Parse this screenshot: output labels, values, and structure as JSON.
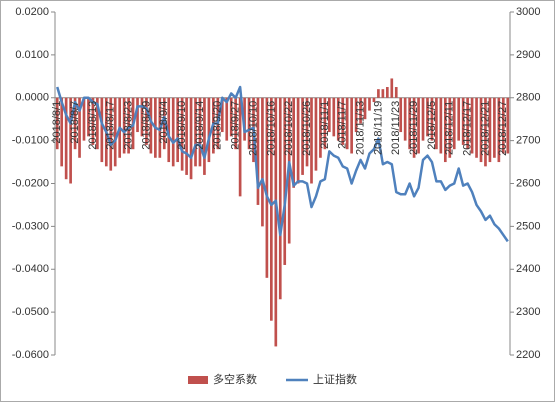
{
  "chart_data": {
    "type": "bar-line",
    "categories": [
      "2018/8/1",
      null,
      null,
      null,
      "2018/8/7",
      null,
      null,
      null,
      "2018/8/13",
      null,
      null,
      null,
      "2018/8/17",
      null,
      null,
      null,
      "2018/8/23",
      null,
      null,
      null,
      "2018/8/29",
      null,
      null,
      null,
      "2018/9/4",
      null,
      null,
      null,
      "2018/9/10",
      null,
      null,
      null,
      "2018/9/14",
      null,
      null,
      null,
      "2018/9/20",
      null,
      null,
      null,
      "2018/9/27",
      null,
      null,
      null,
      "2018/10/10",
      null,
      null,
      null,
      "2018/10/16",
      null,
      null,
      null,
      "2018/10/22",
      null,
      null,
      null,
      "2018/10/26",
      null,
      null,
      null,
      "2018/11/1",
      null,
      null,
      null,
      "2018/11/7",
      null,
      null,
      null,
      "2018/11/13",
      null,
      null,
      null,
      "2018/11/19",
      null,
      null,
      null,
      "2018/11/23",
      null,
      null,
      null,
      "2018/11/29",
      null,
      null,
      null,
      "2018/12/5",
      null,
      null,
      null,
      "2018/12/11",
      null,
      null,
      null,
      "2018/12/17",
      null,
      null,
      null,
      "2018/12/21",
      null,
      null,
      null,
      "2018/12/27",
      null
    ],
    "series": [
      {
        "name": "多空系数",
        "color": "#c0504d",
        "axis": "y",
        "values": [
          -0.012,
          -0.016,
          -0.019,
          -0.02,
          -0.012,
          -0.014,
          -0.01,
          -0.009,
          -0.011,
          -0.012,
          -0.015,
          -0.016,
          -0.017,
          -0.016,
          -0.014,
          -0.013,
          -0.013,
          -0.012,
          -0.008,
          -0.009,
          -0.011,
          -0.013,
          -0.014,
          -0.014,
          -0.012,
          -0.015,
          -0.016,
          -0.015,
          -0.017,
          -0.018,
          -0.019,
          -0.016,
          -0.016,
          -0.018,
          -0.015,
          -0.013,
          -0.012,
          -0.008,
          -0.01,
          -0.009,
          -0.012,
          -0.023,
          -0.01,
          -0.012,
          -0.015,
          -0.025,
          -0.03,
          -0.042,
          -0.052,
          -0.058,
          -0.047,
          -0.039,
          -0.034,
          -0.021,
          -0.02,
          -0.018,
          -0.016,
          -0.02,
          -0.017,
          -0.014,
          -0.012,
          -0.008,
          -0.009,
          -0.01,
          -0.011,
          -0.012,
          -0.013,
          -0.008,
          -0.006,
          -0.005,
          -0.003,
          -0.001,
          0.002,
          0.002,
          0.0025,
          0.0045,
          0.0025,
          -0.008,
          -0.01,
          -0.012,
          -0.014,
          -0.013,
          -0.01,
          -0.009,
          -0.01,
          -0.012,
          -0.013,
          -0.015,
          -0.014,
          -0.012,
          -0.01,
          -0.011,
          -0.012,
          -0.013,
          -0.014,
          -0.015,
          -0.016,
          -0.015,
          -0.014,
          -0.015,
          -0.013,
          -0.013
        ]
      },
      {
        "name": "上证指数",
        "color": "#4f81bd",
        "axis": "y2",
        "values": [
          2825,
          2790,
          2760,
          2740,
          2790,
          2770,
          2800,
          2800,
          2790,
          2785,
          2740,
          2720,
          2690,
          2700,
          2730,
          2720,
          2730,
          2735,
          2780,
          2780,
          2775,
          2745,
          2730,
          2725,
          2755,
          2710,
          2695,
          2705,
          2675,
          2670,
          2660,
          2690,
          2690,
          2660,
          2705,
          2740,
          2740,
          2800,
          2790,
          2810,
          2800,
          2825,
          2720,
          2725,
          2730,
          2590,
          2610,
          2570,
          2550,
          2560,
          2480,
          2550,
          2650,
          2595,
          2605,
          2605,
          2600,
          2545,
          2570,
          2605,
          2610,
          2675,
          2665,
          2660,
          2640,
          2635,
          2600,
          2630,
          2655,
          2635,
          2670,
          2680,
          2705,
          2645,
          2650,
          2645,
          2580,
          2575,
          2575,
          2600,
          2570,
          2590,
          2655,
          2665,
          2650,
          2605,
          2605,
          2585,
          2595,
          2600,
          2635,
          2595,
          2600,
          2580,
          2550,
          2535,
          2515,
          2525,
          2505,
          2495,
          2480,
          2465
        ]
      }
    ],
    "ylim": [
      -0.06,
      0.02
    ],
    "yticks": [
      {
        "value": -0.06,
        "label": "-0.0600"
      },
      {
        "value": -0.05,
        "label": "-0.0500"
      },
      {
        "value": -0.04,
        "label": "-0.0400"
      },
      {
        "value": -0.03,
        "label": "-0.0300"
      },
      {
        "value": -0.02,
        "label": "-0.0200"
      },
      {
        "value": -0.01,
        "label": "-0.0100"
      },
      {
        "value": 0,
        "label": "0.0000"
      },
      {
        "value": 0.01,
        "label": "0.0100"
      },
      {
        "value": 0.02,
        "label": "0.0200"
      }
    ],
    "y2lim": [
      2200,
      3000
    ],
    "y2ticks": [
      2200,
      2300,
      2400,
      2500,
      2600,
      2700,
      2800,
      2900,
      3000
    ],
    "legend": "bottom"
  }
}
